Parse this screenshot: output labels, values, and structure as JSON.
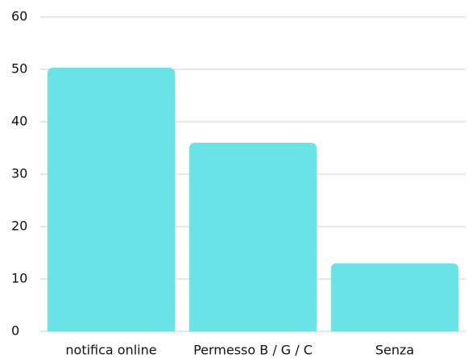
{
  "chart_data": {
    "type": "bar",
    "categories": [
      "notifica online",
      "Permesso B / G / C",
      "Senza"
    ],
    "values": [
      50.3,
      36,
      13
    ],
    "color": "#6ae3e6",
    "ylim": [
      0,
      60
    ],
    "yticks": [
      0,
      10,
      20,
      30,
      40,
      50,
      60
    ],
    "grid": true
  }
}
